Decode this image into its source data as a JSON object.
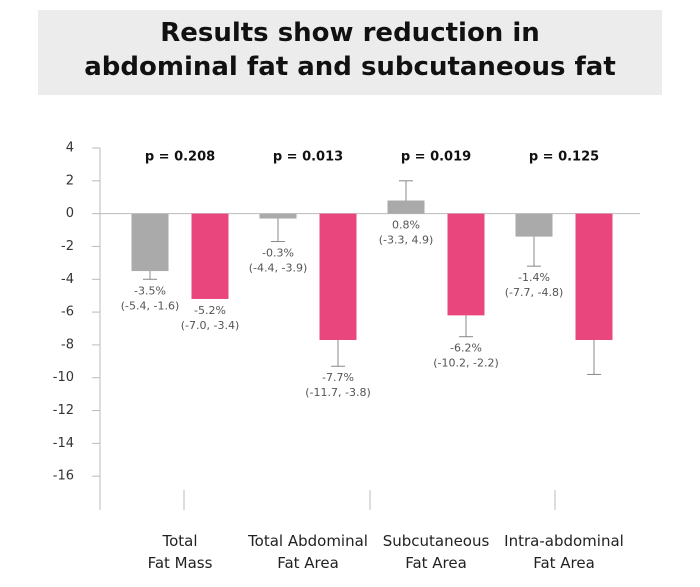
{
  "chart_data": {
    "type": "bar",
    "title": "Results show reduction in\nabdominal fat and subcutaneous fat",
    "categories": [
      "Total\nFat Mass",
      "Total Abdominal\nFat Area",
      "Subcutaneous\nFat Area",
      "Intra-abdominal\nFat Area"
    ],
    "annotations": [
      "p = 0.208",
      "p = 0.013",
      "p = 0.019",
      "p = 0.125"
    ],
    "series": [
      {
        "color": "#aaaaaa",
        "values": [
          -3.5,
          -0.3,
          0.8,
          -1.4
        ],
        "value_labels": [
          "-3.5%",
          "-0.3%",
          "0.8%",
          "-1.4%"
        ],
        "ci_labels": [
          "(-5.4, -1.6)",
          "(-4.4, -3.9)",
          "(-3.3, 4.9)",
          "(-7.7, -4.8)"
        ],
        "whisker": [
          -4.0,
          -1.7,
          2.0,
          -3.2
        ]
      },
      {
        "color": "#e8467c",
        "values": [
          -5.2,
          -7.7,
          -6.2,
          -7.7
        ],
        "value_labels": [
          "-5.2%",
          "-7.7%",
          "-6.2%",
          null
        ],
        "ci_labels": [
          "(-7.0, -3.4)",
          "(-11.7, -3.8)",
          "(-10.2, -2.2)",
          null
        ],
        "whisker": [
          null,
          -9.3,
          -7.5,
          -9.8
        ]
      }
    ],
    "ylim": [
      -18,
      4
    ],
    "yticks": [
      4,
      2,
      0,
      -2,
      -4,
      -6,
      -8,
      -10,
      -12,
      -14,
      -16
    ]
  }
}
